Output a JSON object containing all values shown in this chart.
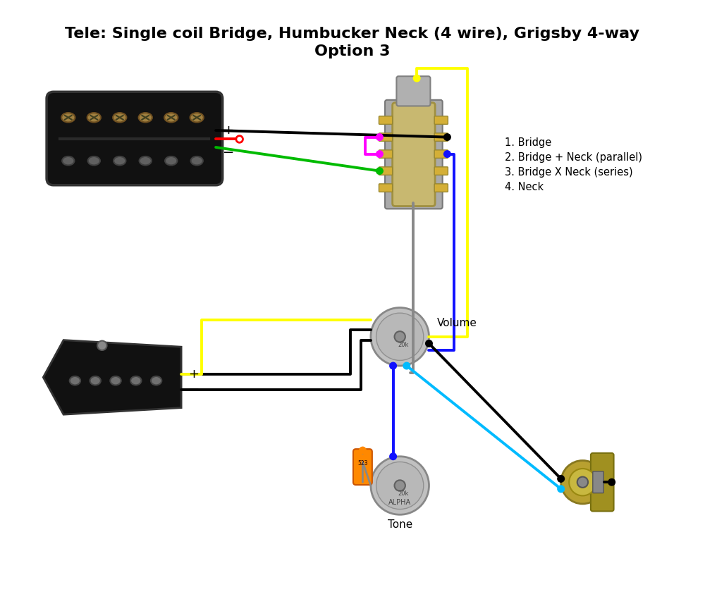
{
  "title_line1": "Tele: Single coil Bridge, Humbucker Neck (4 wire), Grigsby 4-way",
  "title_line2": "Option 3",
  "title_fontsize": 16,
  "title_fontweight": "bold",
  "legend_lines": [
    "1. Bridge",
    "2. Bridge + Neck (parallel)",
    "3. Bridge X Neck (series)",
    "4. Neck"
  ],
  "bg_color": "#ffffff",
  "col_black": "#000000",
  "col_red": "#ff0000",
  "col_green": "#00bb00",
  "col_yellow": "#ffff00",
  "col_blue": "#1111ff",
  "col_magenta": "#ff00ff",
  "col_cyan": "#00bbff",
  "col_gray": "#888888",
  "col_orange": "#ff8800",
  "col_darkgray": "#555555",
  "col_pickup": "#111111",
  "col_pickup_edge": "#333333",
  "col_pole_top": "#909090",
  "col_pole_edge": "#555555",
  "col_pot_face": "#c0c0c0",
  "col_pot_edge": "#888888",
  "col_switch_body": "#c8b870",
  "col_switch_edge": "#a09040",
  "col_switch_contact": "#d4af37",
  "col_jack_body": "#b8a030",
  "col_jack_edge": "#887820",
  "col_jack_inner": "#c8b840"
}
